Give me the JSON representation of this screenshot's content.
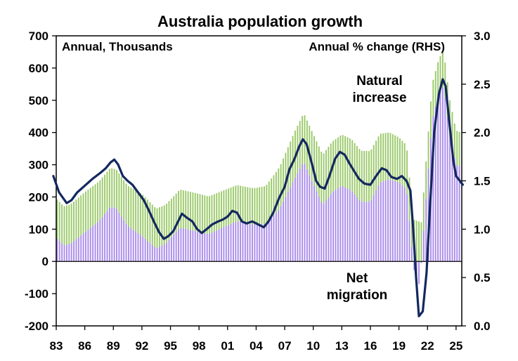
{
  "chart_data": {
    "type": "bar",
    "title": "Australia population growth",
    "left_axis_label": "Annual, Thousands",
    "right_axis_label": "Annual % change (RHS)",
    "left_ylim": [
      -200,
      700
    ],
    "left_ticks": [
      "700",
      "600",
      "500",
      "400",
      "300",
      "200",
      "100",
      "0",
      "-100",
      "-200"
    ],
    "right_ylim": [
      0.0,
      3.0
    ],
    "right_ticks": [
      "3.0",
      "2.5",
      "2.0",
      "1.5",
      "1.0",
      "0.5",
      "0.0"
    ],
    "x_ticks": [
      "83",
      "86",
      "89",
      "92",
      "95",
      "98",
      "01",
      "04",
      "07",
      "10",
      "13",
      "16",
      "19",
      "22",
      "25"
    ],
    "x_range": [
      1983,
      2025.6
    ],
    "colors": {
      "natural_increase": "#9bc96a",
      "net_migration": "#a98bea",
      "growth_line": "#14285f",
      "label_natural": "#8fc25a",
      "label_migration": "#9a55d6"
    },
    "series": [
      {
        "name": "Natural increase",
        "label_lines": [
          "Natural",
          "increase"
        ],
        "kind": "stacked-bar",
        "points": [
          [
            1983,
            120
          ],
          [
            1984.5,
            122
          ],
          [
            1986,
            125
          ],
          [
            1987.5,
            123
          ],
          [
            1989,
            120
          ],
          [
            1990.5,
            125
          ],
          [
            1992,
            130
          ],
          [
            1994,
            122
          ],
          [
            1996,
            118
          ],
          [
            1998,
            118
          ],
          [
            2000,
            115
          ],
          [
            2002,
            112
          ],
          [
            2004,
            113
          ],
          [
            2006,
            125
          ],
          [
            2008,
            145
          ],
          [
            2010,
            155
          ],
          [
            2012,
            157
          ],
          [
            2014,
            160
          ],
          [
            2016,
            157
          ],
          [
            2017.5,
            148
          ],
          [
            2019,
            140
          ],
          [
            2020,
            135
          ],
          [
            2021,
            125
          ],
          [
            2022,
            115
          ],
          [
            2023,
            110
          ],
          [
            2024,
            108
          ],
          [
            2025.5,
            105
          ]
        ]
      },
      {
        "name": "Net migration",
        "label_lines": [
          "Net",
          "migration"
        ],
        "kind": "stacked-bar",
        "points": [
          [
            1983,
            75
          ],
          [
            1983.8,
            50
          ],
          [
            1984.5,
            55
          ],
          [
            1986,
            90
          ],
          [
            1987.5,
            125
          ],
          [
            1988.7,
            170
          ],
          [
            1989.3,
            165
          ],
          [
            1990.5,
            110
          ],
          [
            1992,
            80
          ],
          [
            1993.5,
            40
          ],
          [
            1994.5,
            55
          ],
          [
            1996,
            105
          ],
          [
            1997.5,
            95
          ],
          [
            1999,
            85
          ],
          [
            2000.5,
            105
          ],
          [
            2002,
            125
          ],
          [
            2003.5,
            115
          ],
          [
            2005,
            115
          ],
          [
            2006.5,
            165
          ],
          [
            2008,
            255
          ],
          [
            2009,
            310
          ],
          [
            2010,
            240
          ],
          [
            2011,
            175
          ],
          [
            2012,
            215
          ],
          [
            2013,
            235
          ],
          [
            2014,
            220
          ],
          [
            2015,
            185
          ],
          [
            2016,
            185
          ],
          [
            2017,
            245
          ],
          [
            2018,
            255
          ],
          [
            2019,
            245
          ],
          [
            2019.8,
            225
          ],
          [
            2020.3,
            60
          ],
          [
            2020.8,
            -85
          ],
          [
            2021.2,
            -65
          ],
          [
            2021.8,
            175
          ],
          [
            2022.5,
            440
          ],
          [
            2023.2,
            520
          ],
          [
            2023.7,
            545
          ],
          [
            2024.3,
            400
          ],
          [
            2025,
            300
          ],
          [
            2025.5,
            295
          ]
        ]
      },
      {
        "name": "Net migration (line)",
        "kind": "line",
        "axis": "right",
        "points": [
          [
            1982.7,
            1.55
          ],
          [
            1983.3,
            1.38
          ],
          [
            1984.1,
            1.27
          ],
          [
            1984.6,
            1.3
          ],
          [
            1985.2,
            1.38
          ],
          [
            1986,
            1.45
          ],
          [
            1986.8,
            1.52
          ],
          [
            1987.6,
            1.58
          ],
          [
            1988.2,
            1.63
          ],
          [
            1988.7,
            1.69
          ],
          [
            1989.1,
            1.72
          ],
          [
            1989.5,
            1.67
          ],
          [
            1990,
            1.55
          ],
          [
            1990.5,
            1.5
          ],
          [
            1991,
            1.46
          ],
          [
            1991.6,
            1.38
          ],
          [
            1992.2,
            1.3
          ],
          [
            1992.7,
            1.2
          ],
          [
            1993.3,
            1.07
          ],
          [
            1993.8,
            0.97
          ],
          [
            1994.3,
            0.9
          ],
          [
            1994.8,
            0.93
          ],
          [
            1995.3,
            0.98
          ],
          [
            1995.8,
            1.08
          ],
          [
            1996.2,
            1.16
          ],
          [
            1996.7,
            1.12
          ],
          [
            1997.3,
            1.08
          ],
          [
            1997.8,
            1.0
          ],
          [
            1998.3,
            0.96
          ],
          [
            1998.8,
            1.0
          ],
          [
            1999.4,
            1.05
          ],
          [
            2000,
            1.08
          ],
          [
            2000.5,
            1.1
          ],
          [
            2001,
            1.13
          ],
          [
            2001.5,
            1.19
          ],
          [
            2002,
            1.17
          ],
          [
            2002.5,
            1.08
          ],
          [
            2003,
            1.06
          ],
          [
            2003.6,
            1.08
          ],
          [
            2004.2,
            1.05
          ],
          [
            2004.8,
            1.02
          ],
          [
            2005.3,
            1.08
          ],
          [
            2005.8,
            1.17
          ],
          [
            2006.4,
            1.32
          ],
          [
            2007,
            1.44
          ],
          [
            2007.5,
            1.62
          ],
          [
            2008,
            1.72
          ],
          [
            2008.5,
            1.85
          ],
          [
            2008.9,
            1.93
          ],
          [
            2009.3,
            1.88
          ],
          [
            2009.8,
            1.7
          ],
          [
            2010.3,
            1.5
          ],
          [
            2010.7,
            1.44
          ],
          [
            2011.2,
            1.42
          ],
          [
            2011.7,
            1.55
          ],
          [
            2012.3,
            1.73
          ],
          [
            2012.8,
            1.8
          ],
          [
            2013.3,
            1.77
          ],
          [
            2013.8,
            1.68
          ],
          [
            2014.3,
            1.6
          ],
          [
            2014.8,
            1.52
          ],
          [
            2015.4,
            1.47
          ],
          [
            2016,
            1.46
          ],
          [
            2016.6,
            1.55
          ],
          [
            2017.2,
            1.63
          ],
          [
            2017.7,
            1.61
          ],
          [
            2018.2,
            1.54
          ],
          [
            2018.8,
            1.52
          ],
          [
            2019.3,
            1.55
          ],
          [
            2019.8,
            1.5
          ],
          [
            2020.2,
            1.4
          ],
          [
            2020.5,
            1.0
          ],
          [
            2020.8,
            0.5
          ],
          [
            2021.1,
            0.1
          ],
          [
            2021.5,
            0.15
          ],
          [
            2021.9,
            0.55
          ],
          [
            2022.3,
            1.3
          ],
          [
            2022.7,
            2.0
          ],
          [
            2023.2,
            2.4
          ],
          [
            2023.6,
            2.55
          ],
          [
            2023.9,
            2.48
          ],
          [
            2024.3,
            2.1
          ],
          [
            2024.7,
            1.72
          ],
          [
            2025,
            1.55
          ],
          [
            2025.4,
            1.5
          ],
          [
            2025.7,
            1.46
          ]
        ]
      }
    ],
    "grid": false,
    "legend": "inline labels"
  }
}
